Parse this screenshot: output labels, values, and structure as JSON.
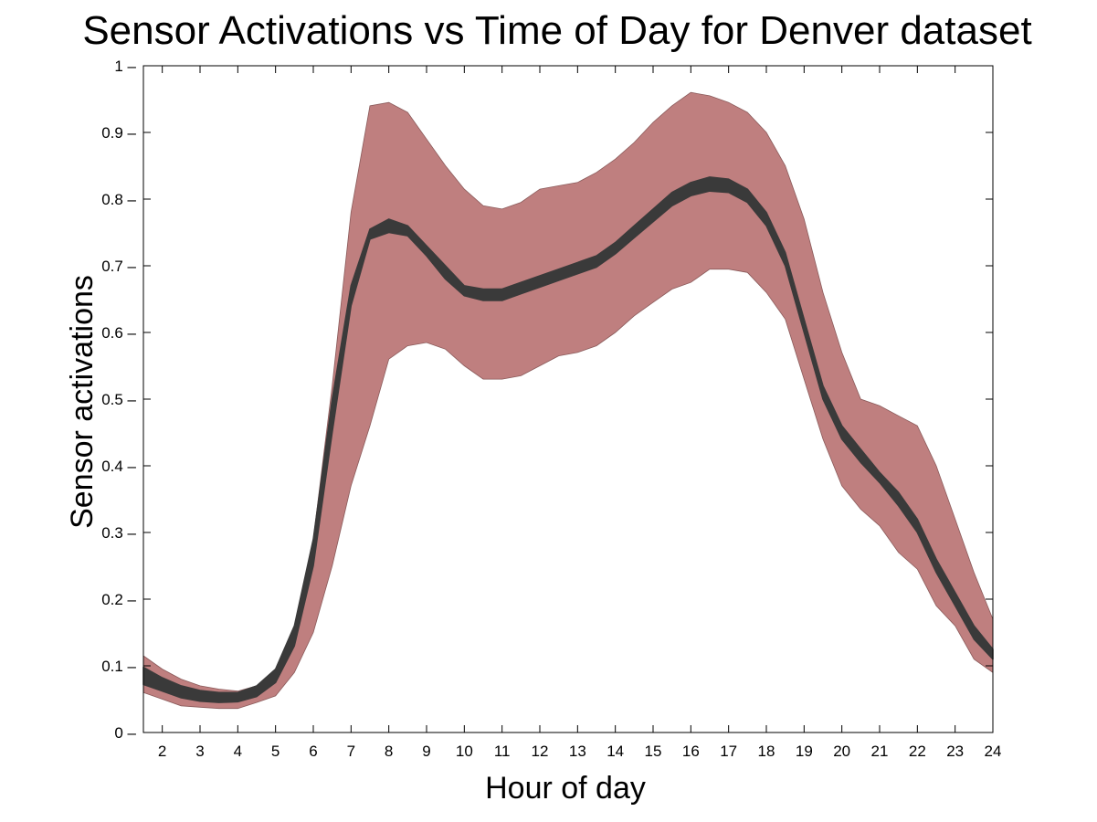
{
  "chart_data": {
    "type": "area",
    "title": "Sensor Activations vs Time of Day for Denver dataset",
    "xlabel": "Hour of day",
    "ylabel": "Sensor activations",
    "xlim": [
      1.5,
      24
    ],
    "ylim": [
      0,
      1
    ],
    "xticks": [
      2,
      3,
      4,
      5,
      6,
      7,
      8,
      9,
      10,
      11,
      12,
      13,
      14,
      15,
      16,
      17,
      18,
      19,
      20,
      21,
      22,
      23,
      24
    ],
    "yticks": [
      0,
      0.1,
      0.2,
      0.3,
      0.4,
      0.5,
      0.6,
      0.7,
      0.8,
      0.9,
      1
    ],
    "grid": false,
    "colors": {
      "band": "#bf7f7f",
      "band_edge": "#8a5a5a",
      "mean_band": "#3a3a3a",
      "axis": "#000000"
    },
    "series": [
      {
        "kind": "outer-band",
        "x": [
          1.5,
          2,
          2.5,
          3,
          3.5,
          4,
          4.5,
          5,
          5.5,
          6,
          6.5,
          7,
          7.5,
          8,
          8.5,
          9,
          9.5,
          10,
          10.5,
          11,
          11.5,
          12,
          12.5,
          13,
          13.5,
          14,
          14.5,
          15,
          15.5,
          16,
          16.5,
          17,
          17.5,
          18,
          18.5,
          19,
          19.5,
          20,
          20.5,
          21,
          21.5,
          22,
          22.5,
          23,
          23.5,
          24
        ],
        "upper": [
          0.115,
          0.095,
          0.08,
          0.07,
          0.065,
          0.062,
          0.07,
          0.095,
          0.16,
          0.29,
          0.52,
          0.78,
          0.94,
          0.945,
          0.93,
          0.89,
          0.85,
          0.815,
          0.79,
          0.785,
          0.795,
          0.815,
          0.82,
          0.825,
          0.84,
          0.86,
          0.885,
          0.915,
          0.94,
          0.96,
          0.955,
          0.945,
          0.93,
          0.9,
          0.85,
          0.77,
          0.66,
          0.57,
          0.5,
          0.49,
          0.475,
          0.46,
          0.4,
          0.32,
          0.24,
          0.17
        ],
        "lower": [
          0.06,
          0.05,
          0.04,
          0.038,
          0.036,
          0.036,
          0.045,
          0.055,
          0.09,
          0.15,
          0.25,
          0.37,
          0.46,
          0.56,
          0.58,
          0.585,
          0.575,
          0.55,
          0.53,
          0.53,
          0.535,
          0.55,
          0.565,
          0.57,
          0.58,
          0.6,
          0.625,
          0.645,
          0.665,
          0.675,
          0.695,
          0.695,
          0.69,
          0.66,
          0.62,
          0.53,
          0.44,
          0.37,
          0.335,
          0.31,
          0.27,
          0.245,
          0.19,
          0.16,
          0.11,
          0.09
        ]
      },
      {
        "kind": "mean-band",
        "x": [
          1.5,
          2,
          2.5,
          3,
          3.5,
          4,
          4.5,
          5,
          5.5,
          6,
          6.5,
          7,
          7.5,
          8,
          8.5,
          9,
          9.5,
          10,
          10.5,
          11,
          11.5,
          12,
          12.5,
          13,
          13.5,
          14,
          14.5,
          15,
          15.5,
          16,
          16.5,
          17,
          17.5,
          18,
          18.5,
          19,
          19.5,
          20,
          20.5,
          21,
          21.5,
          22,
          22.5,
          23,
          23.5,
          24
        ],
        "upper": [
          0.098,
          0.082,
          0.07,
          0.063,
          0.06,
          0.06,
          0.07,
          0.095,
          0.16,
          0.29,
          0.5,
          0.67,
          0.755,
          0.77,
          0.76,
          0.73,
          0.7,
          0.67,
          0.665,
          0.665,
          0.675,
          0.685,
          0.695,
          0.705,
          0.715,
          0.735,
          0.76,
          0.785,
          0.81,
          0.825,
          0.833,
          0.83,
          0.815,
          0.78,
          0.72,
          0.62,
          0.52,
          0.46,
          0.425,
          0.39,
          0.36,
          0.32,
          0.26,
          0.21,
          0.16,
          0.125
        ],
        "lower": [
          0.072,
          0.062,
          0.052,
          0.047,
          0.045,
          0.046,
          0.054,
          0.075,
          0.13,
          0.25,
          0.45,
          0.64,
          0.74,
          0.75,
          0.745,
          0.715,
          0.68,
          0.655,
          0.648,
          0.648,
          0.658,
          0.668,
          0.678,
          0.688,
          0.698,
          0.718,
          0.742,
          0.766,
          0.79,
          0.805,
          0.812,
          0.81,
          0.795,
          0.76,
          0.7,
          0.6,
          0.5,
          0.44,
          0.405,
          0.375,
          0.34,
          0.3,
          0.24,
          0.19,
          0.14,
          0.11
        ]
      }
    ]
  }
}
